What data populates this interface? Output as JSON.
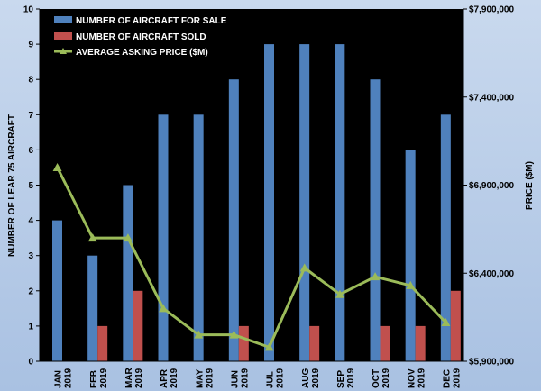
{
  "chart_data": {
    "type": "bar",
    "categories": [
      {
        "month": "JAN",
        "year": "2019"
      },
      {
        "month": "FEB",
        "year": "2019"
      },
      {
        "month": "MAR",
        "year": "2019"
      },
      {
        "month": "APR",
        "year": "2019"
      },
      {
        "month": "MAY",
        "year": "2019"
      },
      {
        "month": "JUN",
        "year": "2019"
      },
      {
        "month": "JUL",
        "year": "2019"
      },
      {
        "month": "AUG",
        "year": "2019"
      },
      {
        "month": "SEP",
        "year": "2019"
      },
      {
        "month": "OCT",
        "year": "2019"
      },
      {
        "month": "NOV",
        "year": "2019"
      },
      {
        "month": "DEC",
        "year": "2019"
      }
    ],
    "series": [
      {
        "name": "NUMBER OF AIRCRAFT FOR SALE",
        "type": "bar",
        "axis": "left",
        "color": "#4f81bd",
        "values": [
          4,
          3,
          5,
          7,
          7,
          8,
          9,
          9,
          9,
          8,
          6,
          7
        ]
      },
      {
        "name": "NUMBER OF AIRCRAFT SOLD",
        "type": "bar",
        "axis": "left",
        "color": "#c0504d",
        "values": [
          0,
          1,
          2,
          0,
          0,
          1,
          0,
          1,
          0,
          1,
          1,
          2
        ]
      },
      {
        "name": "AVERAGE ASKING PRICE ($M)",
        "type": "line",
        "axis": "right",
        "color": "#9bbb59",
        "marker": "triangle",
        "values": [
          7000000,
          6600000,
          6600000,
          6200000,
          6050000,
          6050000,
          5980000,
          6430000,
          6280000,
          6380000,
          6330000,
          6120000
        ]
      }
    ],
    "y_left": {
      "label": "NUMBER OF LEAR 75 AIRCRAFT",
      "range": [
        0,
        10
      ],
      "ticks": [
        "0",
        "1",
        "2",
        "3",
        "4",
        "5",
        "6",
        "7",
        "8",
        "9",
        "10"
      ]
    },
    "y_right": {
      "label": "PRICE ($M)",
      "range": [
        5900000,
        7900000
      ],
      "ticks": [
        {
          "value": 5900000,
          "label": "$5,900,000"
        },
        {
          "value": 6400000,
          "label": "$6,400,000"
        },
        {
          "value": 6900000,
          "label": "$6,900,000"
        },
        {
          "value": 7400000,
          "label": "$7,400,000"
        },
        {
          "value": 7900000,
          "label": "$7,900,000"
        }
      ]
    },
    "grid": false,
    "legend": "top-left",
    "background": "#000000"
  }
}
